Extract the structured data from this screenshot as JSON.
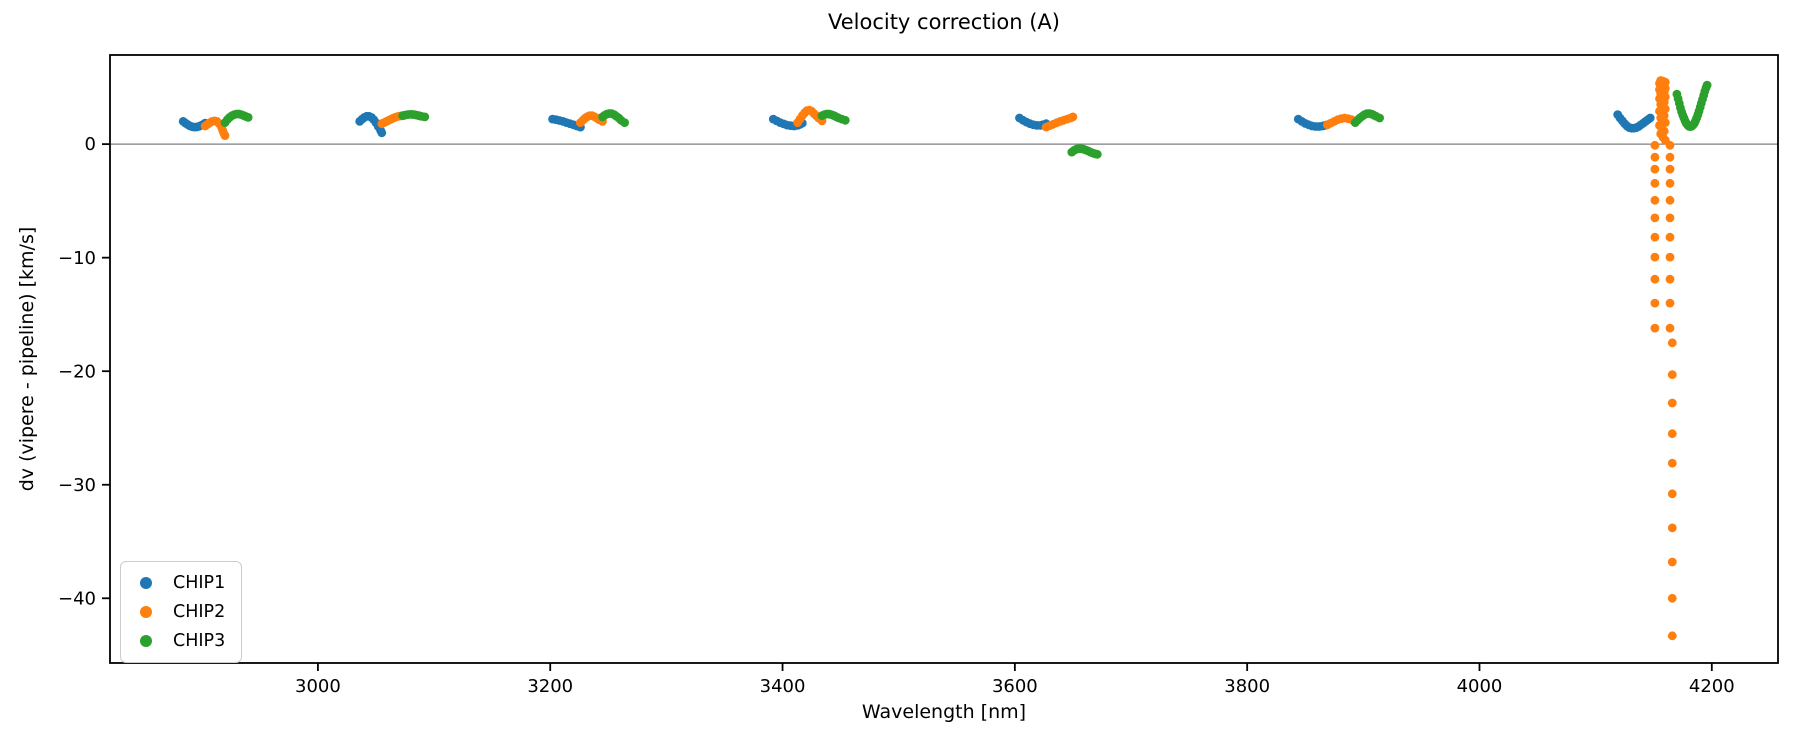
{
  "chart_data": {
    "type": "scatter",
    "title": "Velocity correction (A)",
    "xlabel": "Wavelength [nm]",
    "ylabel": "dv (vipere - pipeline) [km/s]",
    "xlim": [
      2821,
      4257
    ],
    "ylim": [
      -45.7,
      7.85
    ],
    "x_ticks": [
      3000,
      3200,
      3400,
      3600,
      3800,
      4000,
      4200
    ],
    "y_ticks": [
      0,
      -10,
      -20,
      -30,
      -40
    ],
    "grid": false,
    "legend_position": "lower left",
    "zero_line": {
      "y": 0,
      "color": "#7f7f7f"
    },
    "marker_radius_px": 4.4,
    "series": [
      {
        "name": "CHIP1",
        "color": "#1f77b4",
        "points": [
          [
            2884,
            2.0
          ],
          [
            2886,
            1.85
          ],
          [
            2888,
            1.72
          ],
          [
            2890,
            1.6
          ],
          [
            2892,
            1.53
          ],
          [
            2894,
            1.5
          ],
          [
            2896,
            1.52
          ],
          [
            2898,
            1.58
          ],
          [
            2900,
            1.67
          ],
          [
            2902,
            1.78
          ],
          [
            2903,
            1.85
          ],
          [
            3036,
            2.0
          ],
          [
            3038,
            2.2
          ],
          [
            3040,
            2.35
          ],
          [
            3042,
            2.45
          ],
          [
            3044,
            2.45
          ],
          [
            3046,
            2.35
          ],
          [
            3048,
            2.15
          ],
          [
            3050,
            1.88
          ],
          [
            3052,
            1.55
          ],
          [
            3054,
            1.2
          ],
          [
            3055,
            1.0
          ],
          [
            3202,
            2.2
          ],
          [
            3205,
            2.15
          ],
          [
            3208,
            2.08
          ],
          [
            3211,
            2.0
          ],
          [
            3214,
            1.9
          ],
          [
            3217,
            1.8
          ],
          [
            3220,
            1.7
          ],
          [
            3223,
            1.6
          ],
          [
            3226,
            1.5
          ],
          [
            3392,
            2.2
          ],
          [
            3395,
            2.05
          ],
          [
            3398,
            1.9
          ],
          [
            3401,
            1.78
          ],
          [
            3404,
            1.68
          ],
          [
            3407,
            1.62
          ],
          [
            3410,
            1.6
          ],
          [
            3413,
            1.65
          ],
          [
            3415,
            1.74
          ],
          [
            3417,
            1.85
          ],
          [
            3604,
            2.3
          ],
          [
            3607,
            2.1
          ],
          [
            3610,
            1.93
          ],
          [
            3613,
            1.8
          ],
          [
            3616,
            1.7
          ],
          [
            3619,
            1.65
          ],
          [
            3622,
            1.65
          ],
          [
            3624,
            1.7
          ],
          [
            3627,
            1.8
          ],
          [
            3844,
            2.2
          ],
          [
            3847,
            2.0
          ],
          [
            3850,
            1.83
          ],
          [
            3853,
            1.7
          ],
          [
            3856,
            1.6
          ],
          [
            3859,
            1.55
          ],
          [
            3862,
            1.55
          ],
          [
            3865,
            1.6
          ],
          [
            3867,
            1.65
          ],
          [
            3869,
            1.7
          ],
          [
            4119,
            2.6
          ],
          [
            4121,
            2.3
          ],
          [
            4123,
            2.05
          ],
          [
            4125,
            1.8
          ],
          [
            4127,
            1.6
          ],
          [
            4129,
            1.45
          ],
          [
            4131,
            1.4
          ],
          [
            4133,
            1.4
          ],
          [
            4135,
            1.45
          ],
          [
            4137,
            1.55
          ],
          [
            4139,
            1.7
          ],
          [
            4141,
            1.85
          ],
          [
            4143,
            2.0
          ],
          [
            4145,
            2.15
          ],
          [
            4147,
            2.3
          ]
        ]
      },
      {
        "name": "CHIP2",
        "color": "#ff7f0e",
        "points": [
          [
            2903,
            1.6
          ],
          [
            2905,
            1.75
          ],
          [
            2907,
            1.9
          ],
          [
            2909,
            2.0
          ],
          [
            2911,
            2.05
          ],
          [
            2913,
            2.0
          ],
          [
            2915,
            1.8
          ],
          [
            2917,
            1.5
          ],
          [
            2918,
            1.2
          ],
          [
            2919,
            0.95
          ],
          [
            2920,
            0.75
          ],
          [
            3055,
            1.8
          ],
          [
            3057,
            1.9
          ],
          [
            3059,
            2.0
          ],
          [
            3061,
            2.1
          ],
          [
            3063,
            2.2
          ],
          [
            3065,
            2.3
          ],
          [
            3067,
            2.38
          ],
          [
            3069,
            2.44
          ],
          [
            3071,
            2.48
          ],
          [
            3073,
            2.5
          ],
          [
            3226,
            1.9
          ],
          [
            3228,
            2.1
          ],
          [
            3230,
            2.28
          ],
          [
            3232,
            2.42
          ],
          [
            3234,
            2.5
          ],
          [
            3236,
            2.5
          ],
          [
            3238,
            2.42
          ],
          [
            3240,
            2.3
          ],
          [
            3242,
            2.15
          ],
          [
            3245,
            2.0
          ],
          [
            3413,
            1.9
          ],
          [
            3415,
            2.2
          ],
          [
            3417,
            2.5
          ],
          [
            3419,
            2.75
          ],
          [
            3421,
            2.95
          ],
          [
            3423,
            3.0
          ],
          [
            3425,
            2.9
          ],
          [
            3427,
            2.7
          ],
          [
            3429,
            2.5
          ],
          [
            3431,
            2.3
          ],
          [
            3434,
            2.05
          ],
          [
            3627,
            1.5
          ],
          [
            3630,
            1.62
          ],
          [
            3633,
            1.75
          ],
          [
            3636,
            1.88
          ],
          [
            3639,
            2.0
          ],
          [
            3642,
            2.1
          ],
          [
            3645,
            2.2
          ],
          [
            3648,
            2.3
          ],
          [
            3650,
            2.4
          ],
          [
            3869,
            1.7
          ],
          [
            3872,
            1.85
          ],
          [
            3875,
            2.0
          ],
          [
            3878,
            2.15
          ],
          [
            3881,
            2.25
          ],
          [
            3884,
            2.3
          ],
          [
            3887,
            2.25
          ],
          [
            3890,
            2.15
          ],
          [
            3893,
            2.05
          ],
          [
            4156,
            5.6
          ],
          [
            4158,
            5.55
          ],
          [
            4160,
            5.45
          ],
          [
            4155,
            5.35
          ],
          [
            4157,
            5.28
          ],
          [
            4159,
            5.2
          ],
          [
            4156,
            5.1
          ],
          [
            4158,
            5.0
          ],
          [
            4160,
            4.9
          ],
          [
            4155,
            4.8
          ],
          [
            4157,
            4.7
          ],
          [
            4159,
            4.6
          ],
          [
            4156,
            4.45
          ],
          [
            4158,
            4.3
          ],
          [
            4160,
            4.15
          ],
          [
            4155,
            4.0
          ],
          [
            4157,
            3.85
          ],
          [
            4159,
            3.7
          ],
          [
            4156,
            3.5
          ],
          [
            4158,
            3.3
          ],
          [
            4160,
            3.1
          ],
          [
            4155,
            2.9
          ],
          [
            4157,
            2.7
          ],
          [
            4159,
            2.5
          ],
          [
            4156,
            2.3
          ],
          [
            4158,
            2.1
          ],
          [
            4160,
            1.9
          ],
          [
            4155,
            1.65
          ],
          [
            4157,
            1.4
          ],
          [
            4159,
            1.15
          ],
          [
            4156,
            0.9
          ],
          [
            4158,
            0.6
          ],
          [
            4160,
            0.35
          ],
          [
            4151,
            -0.1
          ],
          [
            4164,
            -0.1
          ],
          [
            4151,
            -1.15
          ],
          [
            4164,
            -1.15
          ],
          [
            4151,
            -2.2
          ],
          [
            4164,
            -2.2
          ],
          [
            4151,
            -3.45
          ],
          [
            4164,
            -3.45
          ],
          [
            4151,
            -4.95
          ],
          [
            4164,
            -4.95
          ],
          [
            4151,
            -6.5
          ],
          [
            4164,
            -6.5
          ],
          [
            4151,
            -8.2
          ],
          [
            4164,
            -8.2
          ],
          [
            4151,
            -9.95
          ],
          [
            4164,
            -9.95
          ],
          [
            4151,
            -11.9
          ],
          [
            4164,
            -11.9
          ],
          [
            4151,
            -14.0
          ],
          [
            4164,
            -14.0
          ],
          [
            4151,
            -16.2
          ],
          [
            4164,
            -16.2
          ],
          [
            4166,
            -17.5
          ],
          [
            4166,
            -20.3
          ],
          [
            4166,
            -22.8
          ],
          [
            4166,
            -25.5
          ],
          [
            4166,
            -28.1
          ],
          [
            4166,
            -30.8
          ],
          [
            4166,
            -33.8
          ],
          [
            4166,
            -36.8
          ],
          [
            4166,
            -40.0
          ],
          [
            4166,
            -43.3
          ]
        ]
      },
      {
        "name": "CHIP3",
        "color": "#2ca02c",
        "points": [
          [
            2920,
            1.9
          ],
          [
            2922,
            2.15
          ],
          [
            2924,
            2.35
          ],
          [
            2926,
            2.5
          ],
          [
            2928,
            2.6
          ],
          [
            2930,
            2.65
          ],
          [
            2932,
            2.65
          ],
          [
            2934,
            2.6
          ],
          [
            2936,
            2.52
          ],
          [
            2938,
            2.43
          ],
          [
            2940,
            2.35
          ],
          [
            3073,
            2.5
          ],
          [
            3075,
            2.55
          ],
          [
            3077,
            2.6
          ],
          [
            3079,
            2.62
          ],
          [
            3081,
            2.62
          ],
          [
            3083,
            2.6
          ],
          [
            3085,
            2.55
          ],
          [
            3087,
            2.5
          ],
          [
            3089,
            2.45
          ],
          [
            3092,
            2.4
          ],
          [
            3245,
            2.4
          ],
          [
            3247,
            2.55
          ],
          [
            3249,
            2.65
          ],
          [
            3251,
            2.7
          ],
          [
            3253,
            2.68
          ],
          [
            3255,
            2.6
          ],
          [
            3257,
            2.45
          ],
          [
            3259,
            2.3
          ],
          [
            3261,
            2.1
          ],
          [
            3264,
            1.9
          ],
          [
            3434,
            2.5
          ],
          [
            3436,
            2.6
          ],
          [
            3438,
            2.65
          ],
          [
            3440,
            2.65
          ],
          [
            3442,
            2.6
          ],
          [
            3444,
            2.52
          ],
          [
            3446,
            2.42
          ],
          [
            3448,
            2.32
          ],
          [
            3451,
            2.2
          ],
          [
            3454,
            2.1
          ],
          [
            3649,
            -0.7
          ],
          [
            3651,
            -0.55
          ],
          [
            3653,
            -0.45
          ],
          [
            3655,
            -0.4
          ],
          [
            3657,
            -0.4
          ],
          [
            3659,
            -0.45
          ],
          [
            3661,
            -0.52
          ],
          [
            3663,
            -0.6
          ],
          [
            3665,
            -0.7
          ],
          [
            3667,
            -0.78
          ],
          [
            3669,
            -0.85
          ],
          [
            3671,
            -0.9
          ],
          [
            3893,
            1.9
          ],
          [
            3895,
            2.1
          ],
          [
            3897,
            2.3
          ],
          [
            3899,
            2.45
          ],
          [
            3901,
            2.6
          ],
          [
            3903,
            2.68
          ],
          [
            3905,
            2.7
          ],
          [
            3907,
            2.65
          ],
          [
            3909,
            2.55
          ],
          [
            3911,
            2.45
          ],
          [
            3914,
            2.3
          ],
          [
            4170,
            4.4
          ],
          [
            4171,
            4.0
          ],
          [
            4172,
            3.6
          ],
          [
            4173,
            3.2
          ],
          [
            4174,
            2.85
          ],
          [
            4175,
            2.55
          ],
          [
            4176,
            2.3
          ],
          [
            4177,
            2.05
          ],
          [
            4178,
            1.85
          ],
          [
            4179,
            1.7
          ],
          [
            4180,
            1.6
          ],
          [
            4181,
            1.55
          ],
          [
            4182,
            1.55
          ],
          [
            4183,
            1.6
          ],
          [
            4184,
            1.7
          ],
          [
            4185,
            1.85
          ],
          [
            4186,
            2.05
          ],
          [
            4187,
            2.3
          ],
          [
            4188,
            2.6
          ],
          [
            4189,
            2.9
          ],
          [
            4190,
            3.25
          ],
          [
            4191,
            3.6
          ],
          [
            4192,
            3.95
          ],
          [
            4193,
            4.3
          ],
          [
            4194,
            4.65
          ],
          [
            4195,
            4.95
          ],
          [
            4196,
            5.2
          ]
        ]
      }
    ]
  }
}
